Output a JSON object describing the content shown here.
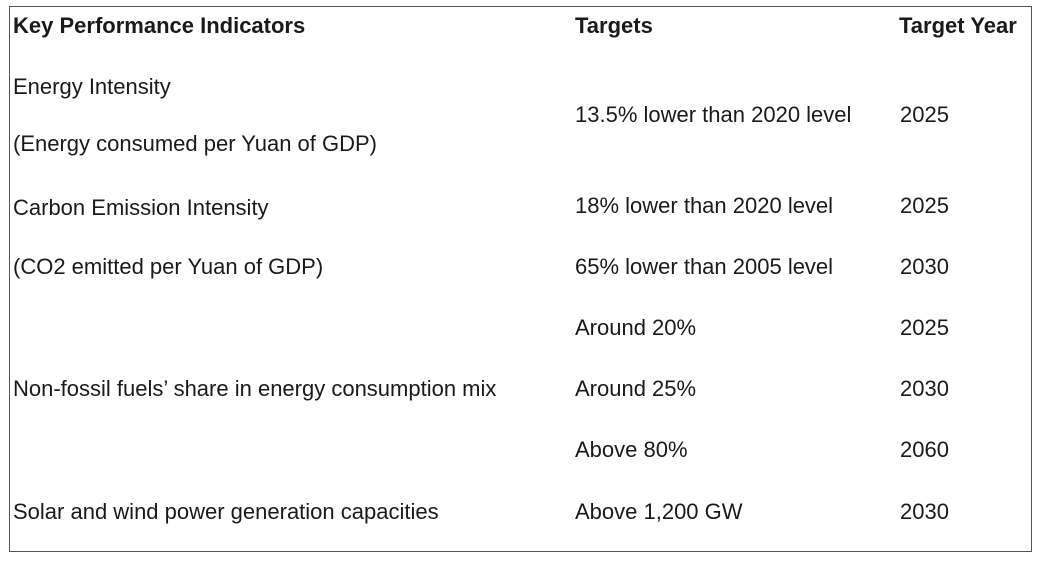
{
  "table": {
    "headers": [
      "Key Performance Indicators",
      "Targets",
      "Target Year"
    ],
    "rows": [
      {
        "indicator_lines": [
          "Energy Intensity",
          "(Energy consumed per Yuan of GDP)"
        ],
        "target": "13.5% lower than 2020 level",
        "year": "2025"
      },
      {
        "indicator_lines": [
          "Carbon Emission Intensity",
          "(CO2 emitted per Yuan of GDP)"
        ],
        "targets": [
          {
            "target": "18% lower than 2020 level",
            "year": "2025"
          },
          {
            "target": "65% lower than 2005 level",
            "year": "2030"
          }
        ]
      },
      {
        "indicator": "Non-fossil fuels’ share in energy consumption mix",
        "targets": [
          {
            "target": "Around 20%",
            "year": "2025"
          },
          {
            "target": "Around 25%",
            "year": "2030"
          },
          {
            "target": "Above 80%",
            "year": "2060"
          }
        ]
      },
      {
        "indicator": "Solar and wind power generation capacities",
        "target": "Above 1,200 GW",
        "year": "2030"
      }
    ]
  }
}
